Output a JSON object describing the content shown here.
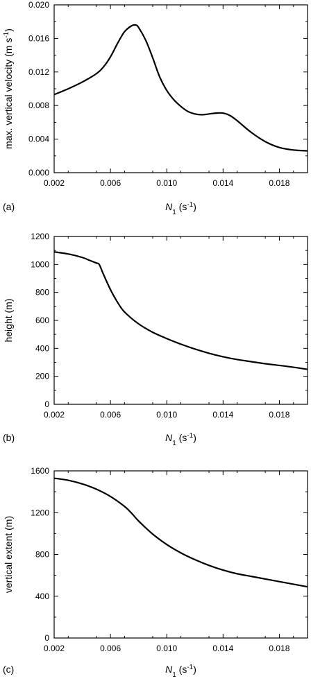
{
  "chart_data": [
    {
      "type": "line",
      "panel_label": "(a)",
      "ylabel": "max. vertical velocity (m s",
      "ylabel_sup": "-1",
      "ylabel_close": ")",
      "xlabel": "N",
      "xlabel_sub": "1",
      "xlabel_unit": " (s",
      "xlabel_sup": "-1",
      "xlabel_close": ")",
      "xlim": [
        0.002,
        0.02
      ],
      "ylim": [
        0.0,
        0.02
      ],
      "xticks": [
        "0.002",
        "0.006",
        "0.010",
        "0.014",
        "0.018"
      ],
      "xtick_values": [
        0.002,
        0.006,
        0.01,
        0.014,
        0.018
      ],
      "yticks": [
        "0.000",
        "0.004",
        "0.008",
        "0.012",
        "0.016",
        "0.020"
      ],
      "ytick_values": [
        0.0,
        0.004,
        0.008,
        0.012,
        0.016,
        0.02
      ],
      "series": [
        {
          "x": [
            0.002,
            0.003,
            0.004,
            0.005,
            0.0055,
            0.006,
            0.0065,
            0.007,
            0.0075,
            0.0078,
            0.008,
            0.0085,
            0.009,
            0.0095,
            0.01,
            0.0105,
            0.011,
            0.0115,
            0.012,
            0.0125,
            0.013,
            0.0135,
            0.014,
            0.0145,
            0.015,
            0.016,
            0.017,
            0.018,
            0.019,
            0.02
          ],
          "y": [
            0.0093,
            0.01,
            0.0108,
            0.0118,
            0.0126,
            0.0138,
            0.0154,
            0.0168,
            0.0175,
            0.0176,
            0.0173,
            0.0158,
            0.0137,
            0.0114,
            0.0098,
            0.0087,
            0.0079,
            0.0073,
            0.007,
            0.0069,
            0.007,
            0.0071,
            0.0071,
            0.0068,
            0.0062,
            0.0048,
            0.0037,
            0.003,
            0.0027,
            0.0026
          ]
        }
      ]
    },
    {
      "type": "line",
      "panel_label": "(b)",
      "ylabel": "height (m)",
      "ylabel_sup": "",
      "ylabel_close": "",
      "xlabel": "N",
      "xlabel_sub": "1",
      "xlabel_unit": " (s",
      "xlabel_sup": "-1",
      "xlabel_close": ")",
      "xlim": [
        0.002,
        0.02
      ],
      "ylim": [
        0,
        1200
      ],
      "xticks": [
        "0.002",
        "0.006",
        "0.010",
        "0.014",
        "0.018"
      ],
      "xtick_values": [
        0.002,
        0.006,
        0.01,
        0.014,
        0.018
      ],
      "yticks": [
        "0",
        "200",
        "400",
        "600",
        "800",
        "1000",
        "1200"
      ],
      "ytick_values": [
        0,
        200,
        400,
        600,
        800,
        1000,
        1200
      ],
      "series": [
        {
          "x": [
            0.002,
            0.003,
            0.004,
            0.0045,
            0.005,
            0.0052,
            0.0055,
            0.006,
            0.0065,
            0.007,
            0.008,
            0.009,
            0.01,
            0.011,
            0.012,
            0.013,
            0.014,
            0.015,
            0.016,
            0.017,
            0.018,
            0.019,
            0.02
          ],
          "y": [
            1090,
            1075,
            1050,
            1030,
            1010,
            1000,
            930,
            820,
            730,
            660,
            575,
            515,
            470,
            430,
            395,
            365,
            340,
            320,
            305,
            290,
            278,
            265,
            250
          ]
        }
      ]
    },
    {
      "type": "line",
      "panel_label": "(c)",
      "ylabel": "vertical extent (m)",
      "ylabel_sup": "",
      "ylabel_close": "",
      "xlabel": "N",
      "xlabel_sub": "1",
      "xlabel_unit": " (s",
      "xlabel_sup": "-1",
      "xlabel_close": ")",
      "xlim": [
        0.002,
        0.02
      ],
      "ylim": [
        0,
        1600
      ],
      "xticks": [
        "0.002",
        "0.006",
        "0.010",
        "0.014",
        "0.018"
      ],
      "xtick_values": [
        0.002,
        0.006,
        0.01,
        0.014,
        0.018
      ],
      "yticks": [
        "0",
        "400",
        "800",
        "1200",
        "1600"
      ],
      "ytick_values": [
        0,
        400,
        800,
        1200,
        1600
      ],
      "series": [
        {
          "x": [
            0.002,
            0.003,
            0.004,
            0.005,
            0.006,
            0.007,
            0.0075,
            0.008,
            0.009,
            0.01,
            0.011,
            0.012,
            0.013,
            0.014,
            0.015,
            0.016,
            0.017,
            0.018,
            0.019,
            0.02
          ],
          "y": [
            1530,
            1510,
            1475,
            1425,
            1355,
            1260,
            1195,
            1120,
            995,
            895,
            815,
            750,
            695,
            650,
            615,
            590,
            565,
            540,
            515,
            490
          ]
        }
      ]
    }
  ]
}
